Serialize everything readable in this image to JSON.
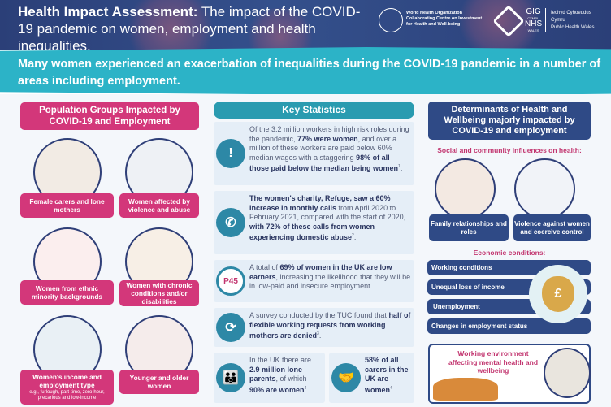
{
  "header": {
    "title_bold": "Health Impact Assessment:",
    "title_rest": "The impact of the COVID-19 pandemic on women, employment and health inequalities.",
    "who_logo_text": "World Health Organization Collaborating Centre on Investment for Health and Well-being",
    "phw_logo_text": [
      "GIG",
      "CYMRU",
      "NHS",
      "WALES",
      "Iechyd Cyhoeddus Cymru",
      "Public Health Wales"
    ]
  },
  "subtitle": "Many women experienced an exacerbation of inequalities during the COVID-19 pandemic in a number of areas including employment.",
  "population": {
    "title": "Population Groups Impacted by COVID-19 and Employment",
    "groups": [
      {
        "label": "Female carers and lone mothers"
      },
      {
        "label": "Women affected by violence and abuse"
      },
      {
        "label": "Women from ethnic minority backgrounds"
      },
      {
        "label": "Women with chronic conditions and/or disabilities"
      },
      {
        "label": "Women's income and employment type",
        "note": "e.g., furlough, part-time, zero-hour, precarious and low-income"
      },
      {
        "label": "Younger and older women"
      }
    ]
  },
  "stats": {
    "title": "Key Statistics",
    "items": [
      {
        "icon": "warning-virus-icon",
        "parts": [
          [
            "Of the 3.2 million workers in high risk roles during the pandemic, ",
            0
          ],
          [
            "77% were women",
            1
          ],
          [
            ", and over a million of these workers are paid below 60% median wages with a staggering ",
            0
          ],
          [
            "98% of all those paid below the median being women",
            1
          ]
        ],
        "ref": "1"
      },
      {
        "icon": "phone-icon",
        "parts": [
          [
            "The women's charity, Refuge, saw a 60% increase in monthly calls",
            1
          ],
          [
            " from April 2020 to February 2021, compared with the start of 2020, ",
            0
          ],
          [
            "with 72% of these calls from women experiencing domestic abuse",
            1
          ]
        ],
        "ref": "2"
      },
      {
        "icon": "p45-form-icon",
        "icon_text": "P45",
        "parts": [
          [
            "A total of ",
            0
          ],
          [
            "69% of women in the UK are low earners",
            1
          ],
          [
            ", increasing the likelihood that they will be in low-paid and insecure employment.",
            0
          ]
        ],
        "ref": ""
      },
      {
        "icon": "flexible-working-icon",
        "parts": [
          [
            "A survey conducted by the TUC found that ",
            0
          ],
          [
            "half of flexible working requests from working mothers are denied",
            1
          ]
        ],
        "ref": "3"
      },
      {
        "icon": "lone-parent-icon",
        "parts": [
          [
            "In the UK there are ",
            0
          ],
          [
            "2.9 million lone parents",
            1
          ],
          [
            ", of which ",
            0
          ],
          [
            "90% are women",
            1
          ]
        ],
        "ref": "4"
      },
      {
        "icon": "carer-icon",
        "parts": [
          [
            "58% of all carers in the UK are women",
            1
          ]
        ],
        "ref": "4"
      }
    ]
  },
  "determinants": {
    "title": "Determinants of Health and Wellbeing majorly impacted by COVID-19 and employment",
    "social_heading": "Social and community influences on health:",
    "social": [
      "Family relationships and roles",
      "Violence against women and coercive control"
    ],
    "economic_heading": "Economic conditions:",
    "economic": [
      "Working conditions",
      "Unequal loss of income",
      "Unemployment",
      "Changes in employment status"
    ],
    "money_symbol": "£",
    "mental": "Working environment affecting mental health and wellbeing"
  },
  "colors": {
    "navy": "#2f4a86",
    "pink": "#d3377a",
    "teal": "#2cb3c7",
    "stat_bg": "#e5eef7"
  }
}
